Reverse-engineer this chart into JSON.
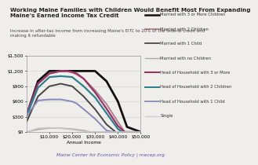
{
  "title": "Working Maine Families with Children Would Benefit Most From Expanding\nMaine's Earned Income Tax Credit",
  "subtitle": "Increase in after-tax income from increasing Maine's EITC to 20% of the federal credit and\nmaking it refundable",
  "xlabel": "Annual Income",
  "footer": "Maine Center for Economic Policy | mecep.org",
  "ylim": [
    0,
    1500
  ],
  "xlim": [
    0,
    50000
  ],
  "yticks": [
    0,
    300,
    600,
    900,
    1200,
    1500
  ],
  "xticks": [
    10000,
    20000,
    30000,
    40000,
    50000
  ],
  "series": [
    {
      "label": "Married with 3 or More Children",
      "color": "#111111",
      "linewidth": 2.0,
      "linestyle": "-",
      "x": [
        0,
        5000,
        10000,
        15000,
        17000,
        20000,
        25000,
        30000,
        35000,
        40000,
        44000,
        50000
      ],
      "y": [
        330,
        1000,
        1200,
        1200,
        1200,
        1200,
        1200,
        1200,
        1000,
        600,
        100,
        0
      ]
    },
    {
      "label": "Married with 2 Children",
      "color": "#b08090",
      "linewidth": 1.4,
      "linestyle": "-",
      "x": [
        0,
        5000,
        10000,
        15000,
        20000,
        25000,
        30000,
        35000,
        40000,
        43000,
        50000
      ],
      "y": [
        280,
        950,
        1150,
        1200,
        1180,
        1050,
        820,
        550,
        200,
        0,
        0
      ]
    },
    {
      "label": "Married with 1 Child",
      "color": "#444444",
      "linewidth": 1.4,
      "linestyle": "-",
      "x": [
        0,
        5000,
        10000,
        15000,
        20000,
        25000,
        30000,
        35000,
        39000,
        50000
      ],
      "y": [
        200,
        700,
        900,
        950,
        900,
        700,
        450,
        150,
        0,
        0
      ]
    },
    {
      "label": "Married with no Children",
      "color": "#aaaaaa",
      "linewidth": 1.1,
      "linestyle": "-",
      "x": [
        0,
        5000,
        10000,
        15000,
        20000,
        25000,
        28000,
        50000
      ],
      "y": [
        0,
        50,
        75,
        75,
        60,
        30,
        0,
        0
      ]
    },
    {
      "label": "Head of Household with 3 or More",
      "color": "#993366",
      "linewidth": 1.6,
      "linestyle": "-",
      "x": [
        0,
        5000,
        10000,
        15000,
        18000,
        22000,
        25000,
        30000,
        35000,
        40000,
        43000,
        50000
      ],
      "y": [
        350,
        950,
        1150,
        1200,
        1200,
        1150,
        1050,
        780,
        460,
        120,
        0,
        0
      ]
    },
    {
      "label": "Head of Household with 2 Children",
      "color": "#2e7f8f",
      "linewidth": 1.6,
      "linestyle": "-",
      "x": [
        0,
        5000,
        10000,
        15000,
        20000,
        25000,
        30000,
        35000,
        40000,
        42000,
        50000
      ],
      "y": [
        320,
        870,
        1080,
        1100,
        1080,
        900,
        680,
        370,
        60,
        0,
        0
      ]
    },
    {
      "label": "Head of Household with 1 Child",
      "color": "#8888bb",
      "linewidth": 1.4,
      "linestyle": "-",
      "x": [
        0,
        5000,
        10000,
        15000,
        20000,
        22000,
        25000,
        30000,
        35000,
        38000,
        50000
      ],
      "y": [
        320,
        620,
        640,
        640,
        600,
        560,
        450,
        260,
        30,
        0,
        0
      ]
    },
    {
      "label": "Single",
      "color": "#cccccc",
      "linewidth": 1.1,
      "linestyle": "-",
      "x": [
        0,
        5000,
        10000,
        15000,
        20000,
        25000,
        27000,
        50000
      ],
      "y": [
        0,
        75,
        85,
        70,
        45,
        10,
        0,
        0
      ]
    }
  ],
  "bg_color": "#f0eeea",
  "plot_bg": "#f0eeea",
  "title_fontsize": 5.2,
  "subtitle_fontsize": 4.0,
  "tick_fontsize": 4.2,
  "legend_fontsize": 3.8,
  "footer_fontsize": 4.3
}
